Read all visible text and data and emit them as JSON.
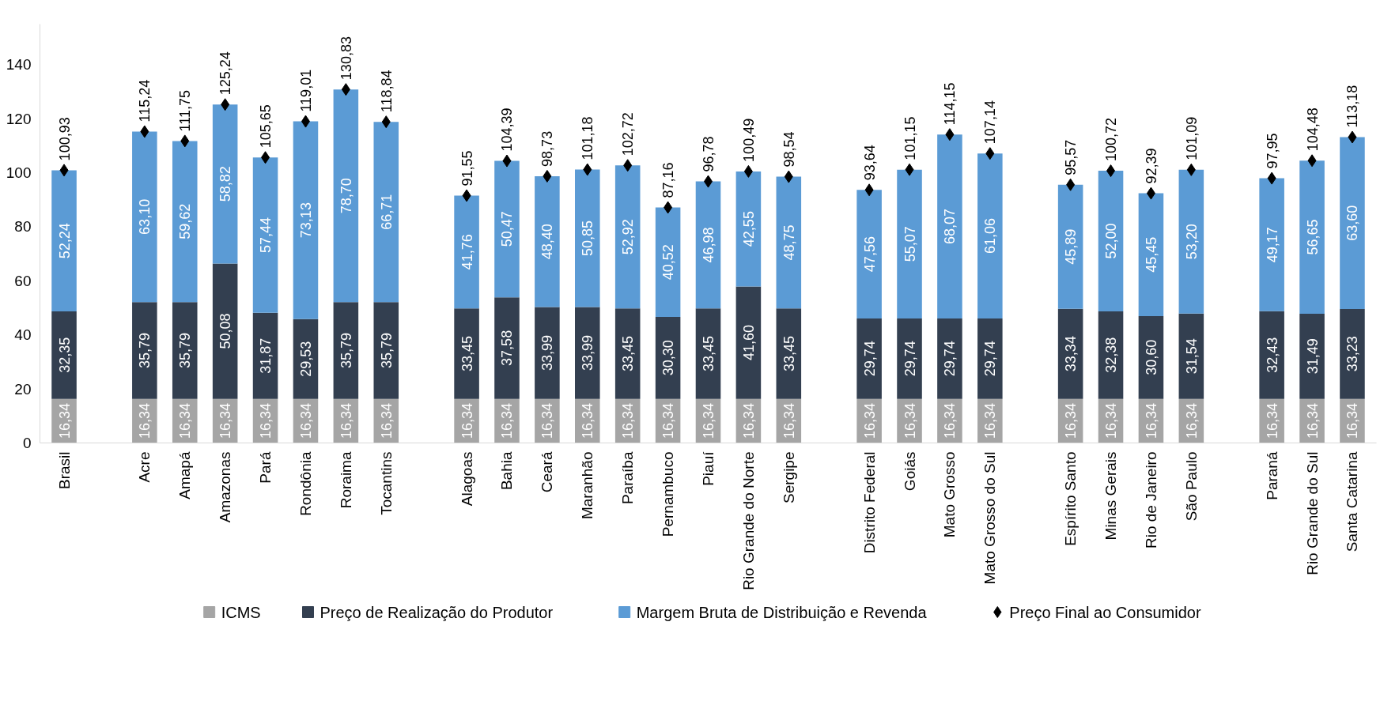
{
  "chart_data": {
    "type": "bar",
    "stacked": true,
    "categories": [
      "Brasil",
      null,
      "Acre",
      "Amapá",
      "Amazonas",
      "Pará",
      "Rondônia",
      "Roraima",
      "Tocantins",
      null,
      "Alagoas",
      "Bahia",
      "Ceará",
      "Maranhão",
      "Paraíba",
      "Pernambuco",
      "Piauí",
      "Rio Grande do Norte",
      "Sergipe",
      null,
      "Distrito Federal",
      "Goiás",
      "Mato Grosso",
      "Mato Grosso do Sul",
      null,
      "Espírito Santo",
      "Minas Gerais",
      "Rio de Janeiro",
      "São Paulo",
      null,
      "Paraná",
      "Rio Grande do Sul",
      "Santa Catarina"
    ],
    "series": [
      {
        "name": "ICMS",
        "color": "#a5a5a5",
        "values": [
          16.34,
          null,
          16.34,
          16.34,
          16.34,
          16.34,
          16.34,
          16.34,
          16.34,
          null,
          16.34,
          16.34,
          16.34,
          16.34,
          16.34,
          16.34,
          16.34,
          16.34,
          16.34,
          null,
          16.34,
          16.34,
          16.34,
          16.34,
          null,
          16.34,
          16.34,
          16.34,
          16.34,
          null,
          16.34,
          16.34,
          16.34
        ],
        "value_labels": [
          "16,34",
          null,
          "16,34",
          "16,34",
          "16,34",
          "16,34",
          "16,34",
          "16,34",
          "16,34",
          null,
          "16,34",
          "16,34",
          "16,34",
          "16,34",
          "16,34",
          "16,34",
          "16,34",
          "16,34",
          "16,34",
          null,
          "16,34",
          "16,34",
          "16,34",
          "16,34",
          null,
          "16,34",
          "16,34",
          "16,34",
          "16,34",
          null,
          "16,34",
          "16,34",
          "16,34"
        ]
      },
      {
        "name": "Preço de Realização do Produtor",
        "color": "#333f50",
        "values": [
          32.35,
          null,
          35.79,
          35.79,
          50.08,
          31.87,
          29.53,
          35.79,
          35.79,
          null,
          33.45,
          37.58,
          33.99,
          33.99,
          33.45,
          30.3,
          33.45,
          41.6,
          33.45,
          null,
          29.74,
          29.74,
          29.74,
          29.74,
          null,
          33.34,
          32.38,
          30.6,
          31.54,
          null,
          32.43,
          31.49,
          33.23
        ],
        "value_labels": [
          "32,35",
          null,
          "35,79",
          "35,79",
          "50,08",
          "31,87",
          "29,53",
          "35,79",
          "35,79",
          null,
          "33,45",
          "37,58",
          "33,99",
          "33,99",
          "33,45",
          "30,30",
          "33,45",
          "41,60",
          "33,45",
          null,
          "29,74",
          "29,74",
          "29,74",
          "29,74",
          null,
          "33,34",
          "32,38",
          "30,60",
          "31,54",
          null,
          "32,43",
          "31,49",
          "33,23"
        ]
      },
      {
        "name": "Margem Bruta de Distribuição e Revenda",
        "color": "#5b9bd5",
        "values": [
          52.24,
          null,
          63.1,
          59.62,
          58.82,
          57.44,
          73.13,
          78.7,
          66.71,
          null,
          41.76,
          50.47,
          48.4,
          50.85,
          52.92,
          40.52,
          46.98,
          42.55,
          48.75,
          null,
          47.56,
          55.07,
          68.07,
          61.06,
          null,
          45.89,
          52.0,
          45.45,
          53.2,
          null,
          49.17,
          56.65,
          63.6
        ],
        "value_labels": [
          "52,24",
          null,
          "63,10",
          "59,62",
          "58,82",
          "57,44",
          "73,13",
          "78,70",
          "66,71",
          null,
          "41,76",
          "50,47",
          "48,40",
          "50,85",
          "52,92",
          "40,52",
          "46,98",
          "42,55",
          "48,75",
          null,
          "47,56",
          "55,07",
          "68,07",
          "61,06",
          null,
          "45,89",
          "52,00",
          "45,45",
          "53,20",
          null,
          "49,17",
          "56,65",
          "63,60"
        ]
      },
      {
        "name": "Preço Final ao Consumidor",
        "type": "scatter",
        "marker": "diamond",
        "color": "#000000",
        "values": [
          100.93,
          null,
          115.24,
          111.75,
          125.24,
          105.65,
          119.01,
          130.83,
          118.84,
          null,
          91.55,
          104.39,
          98.73,
          101.18,
          102.72,
          87.16,
          96.78,
          100.49,
          98.54,
          null,
          93.64,
          101.15,
          114.15,
          107.14,
          null,
          95.57,
          100.72,
          92.39,
          101.09,
          null,
          97.95,
          104.48,
          113.18
        ],
        "value_labels": [
          "100,93",
          null,
          "115,24",
          "111,75",
          "125,24",
          "105,65",
          "119,01",
          "130,83",
          "118,84",
          null,
          "91,55",
          "104,39",
          "98,73",
          "101,18",
          "102,72",
          "87,16",
          "96,78",
          "100,49",
          "98,54",
          null,
          "93,64",
          "101,15",
          "114,15",
          "107,14",
          null,
          "95,57",
          "100,72",
          "92,39",
          "101,09",
          null,
          "97,95",
          "104,48",
          "113,18"
        ]
      }
    ],
    "ylim": [
      0,
      155
    ],
    "yticks": [
      0,
      20,
      40,
      60,
      80,
      100,
      120,
      140
    ],
    "grid": false,
    "legend": "bottom"
  }
}
